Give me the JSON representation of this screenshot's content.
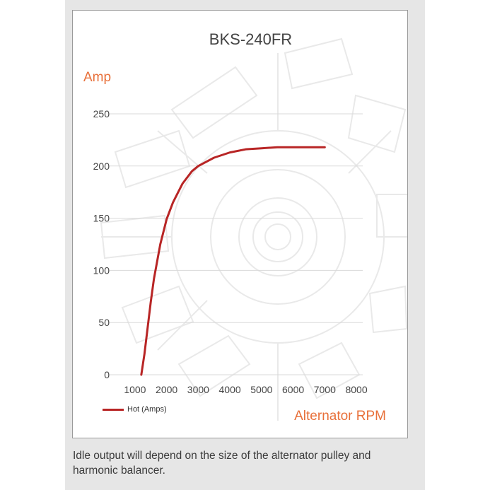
{
  "caption": "Idle output will depend on the size of the alternator pulley and harmonic balancer.",
  "legend": {
    "label": "Hot (Amps)",
    "color": "#b82525"
  },
  "colors": {
    "accent": "#e8703a",
    "series": "#b82525",
    "grid": "#d9d9d9",
    "panel": "#e6e6e6"
  },
  "chart_data": {
    "type": "line",
    "title": "BKS-240FR",
    "ylabel": "Amp",
    "xlabel": "Alternator RPM",
    "xlim": [
      600,
      8200
    ],
    "ylim": [
      0,
      250
    ],
    "xticks": [
      1000,
      2000,
      3000,
      4000,
      5000,
      6000,
      7000,
      8000
    ],
    "yticks": [
      0,
      50,
      100,
      150,
      200,
      250
    ],
    "grid": "horizontal",
    "legend_position": "bottom-left",
    "series": [
      {
        "name": "Hot (Amps)",
        "color": "#b82525",
        "x": [
          1200,
          1300,
          1400,
          1500,
          1600,
          1800,
          2000,
          2200,
          2500,
          2800,
          3000,
          3500,
          4000,
          4500,
          5000,
          5500,
          6000,
          6500,
          7000
        ],
        "y": [
          0,
          20,
          45,
          70,
          92,
          125,
          149,
          165,
          183,
          195,
          200,
          208,
          213,
          216,
          217,
          218,
          218,
          218,
          218
        ]
      }
    ]
  }
}
